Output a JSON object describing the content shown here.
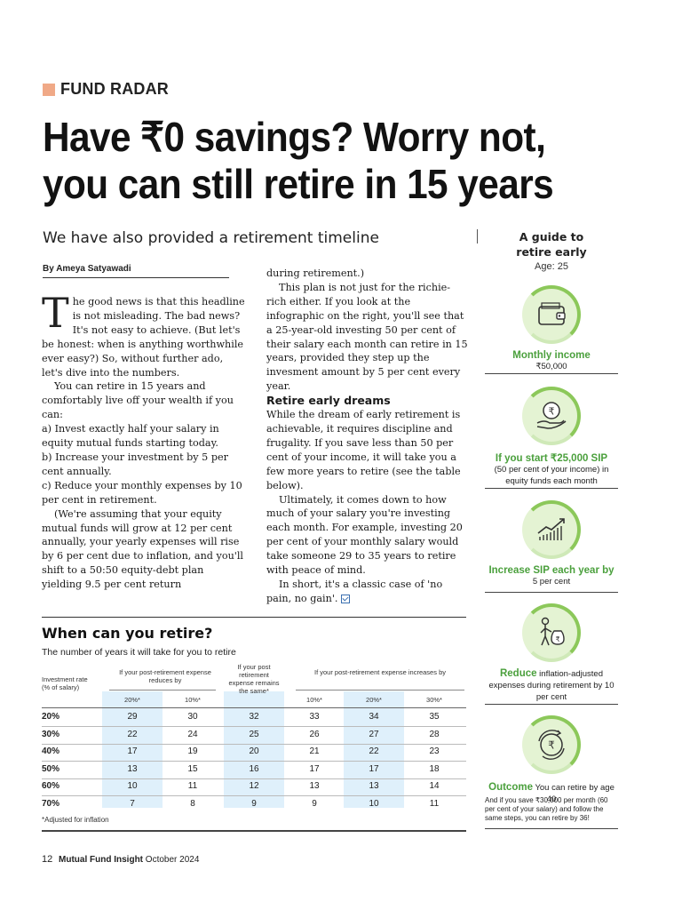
{
  "kicker": "FUND RADAR",
  "headline": {
    "line1": "Have ₹0 savings? Worry not,",
    "line2": "you can still retire in 15 years"
  },
  "deck": "We have also provided a retirement timeline",
  "byline": "By Ameya Satyawadi",
  "col1": {
    "dropcap": "T",
    "p1": "he good news is that this headline is not misleading. The bad news? It's not easy to achieve. (But let's be honest: when is anything worthwhile ever easy?) So, without further ado, let's dive into the numbers.",
    "p2": "You can retire in 15 years and comfortably live off your wealth if you can:",
    "a": "a) Invest exactly half your salary in equity mutual funds starting today.",
    "b": "b) Increase your investment by 5 per cent annually.",
    "c": "c) Reduce your monthly expenses by 10 per cent in retirement.",
    "p3": "(We're assuming that your equity mutual funds will grow at 12 per cent annually, your yearly expenses will rise by 6 per cent due to inflation, and you'll shift to a 50:50 equity-debt plan yielding 9.5 per cent return"
  },
  "col2": {
    "p0": "during retirement.)",
    "p1": "This plan is not just for the richie-rich either. If you look at the infographic on the right, you'll see that a 25-year-old investing 50 per cent of their salary each month can retire in 15 years, provided they step up the invesment amount by 5 per cent every year.",
    "subhead": "Retire early dreams",
    "p2": "While the dream of early retirement is achievable, it requires discipline and frugality. If you save less than 50 per cent of your income, it will take you a few more years to retire (see the table below).",
    "p3": "Ultimately, it comes down to how much of your salary you're investing each month. For example, investing 20 per cent of your monthly salary would take someone 29 to 35 years to retire with peace of mind.",
    "p4": "In short, it's a classic case of 'no pain, no gain'."
  },
  "sidebar": {
    "title1": "A guide to",
    "title2": "retire early",
    "age": "Age: 25",
    "steps": [
      {
        "icon": "wallet-icon",
        "green": "Monthly income",
        "text": "₹50,000"
      },
      {
        "icon": "coin-hand-icon",
        "green": "If you start ₹25,000 SIP",
        "text": "(50 per cent of your income) in equity funds each month"
      },
      {
        "icon": "rising-chart-icon",
        "green": "Increase SIP each year by",
        "text": "5 per cent"
      },
      {
        "icon": "person-moneybag-icon",
        "green": "Reduce",
        "text": "inflation-adjusted expenses during retirement by 10 per cent"
      },
      {
        "icon": "rupee-cycle-icon",
        "green": "Outcome",
        "text": "You can retire by age 40"
      }
    ],
    "note": "And if you save ₹30,000 per month (60 per cent of your salary) and follow the same steps, you can retire by 36!"
  },
  "table": {
    "title": "When can you retire?",
    "subtitle": "The number of years it will take for you to retire",
    "col_group_1": "If your post-retirement expense reduces by",
    "col_group_2": "If your post retirement expense remains the same*",
    "col_group_3": "If your post-retirement expense increases by",
    "row_header_1": "Investment rate",
    "row_header_2": "(% of salary)",
    "columns": [
      "20%*",
      "10%*",
      "",
      "10%*",
      "20%*",
      "30%*"
    ],
    "rows": [
      {
        "label": "20%",
        "values": [
          "29",
          "30",
          "32",
          "33",
          "34",
          "35"
        ]
      },
      {
        "label": "30%",
        "values": [
          "22",
          "24",
          "25",
          "26",
          "27",
          "28"
        ]
      },
      {
        "label": "40%",
        "values": [
          "17",
          "19",
          "20",
          "21",
          "22",
          "23"
        ]
      },
      {
        "label": "50%",
        "values": [
          "13",
          "15",
          "16",
          "17",
          "17",
          "18"
        ]
      },
      {
        "label": "60%",
        "values": [
          "10",
          "11",
          "12",
          "13",
          "13",
          "14"
        ]
      },
      {
        "label": "70%",
        "values": [
          "7",
          "8",
          "9",
          "9",
          "10",
          "11"
        ]
      }
    ],
    "note": "*Adjusted for inflation"
  },
  "footer": {
    "page": "12",
    "publication": "Mutual Fund Insight",
    "date": "October 2024"
  }
}
